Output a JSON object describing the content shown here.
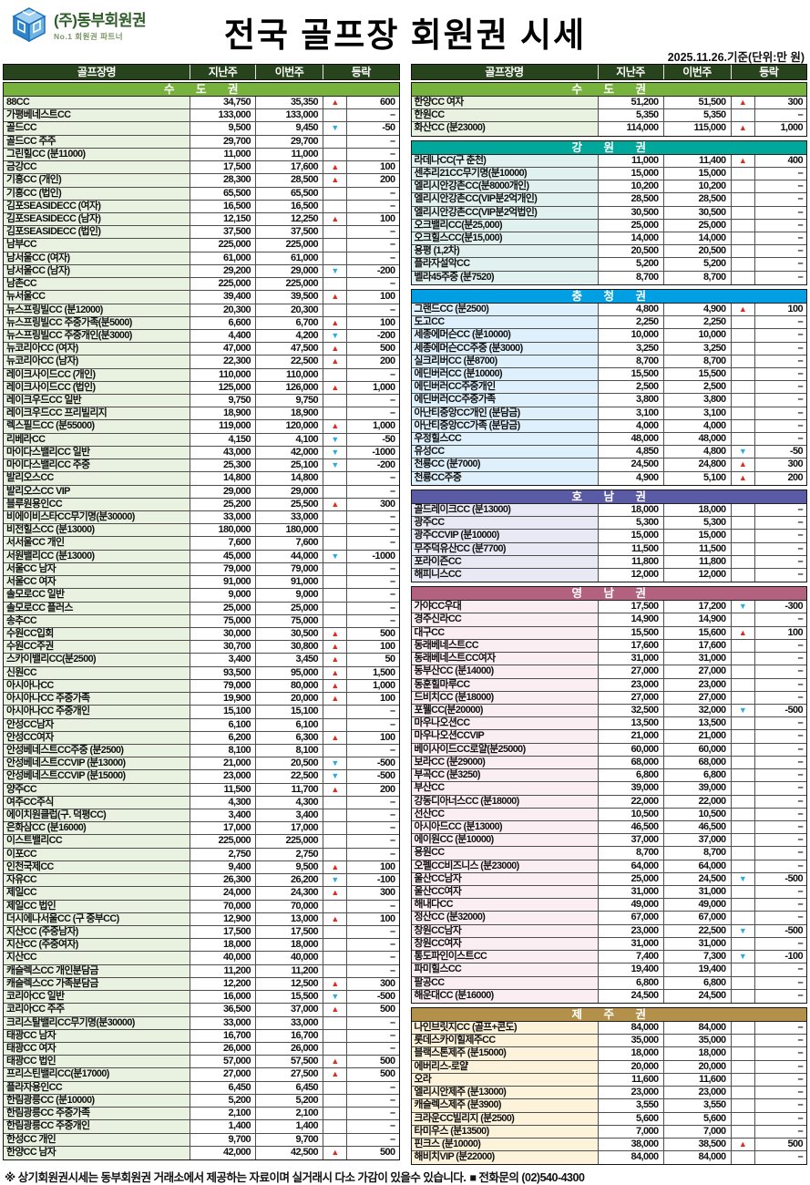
{
  "header": {
    "logo_title": "(주)동부회원권",
    "logo_subtitle": "No.1 회원권 파트너",
    "title": "전국 골프장 회원권 시세",
    "date_note": "2025.11.26.기준(단위:만 원)"
  },
  "columns": [
    "골프장명",
    "지난주",
    "이번주",
    "등락"
  ],
  "markers": {
    "u": "▲",
    "d": "▼"
  },
  "colors": {
    "column_header_bg": "#27441d",
    "up": "#e02a1a",
    "down": "#2aabe2"
  },
  "left_sections": [
    {
      "id": "sudogwon-left",
      "title": "수 도 권",
      "header_bg": "#77b33c",
      "row_bg": "#e9f2e0",
      "rows": [
        [
          "88CC",
          "34,750",
          "35,350",
          "u",
          "600"
        ],
        [
          "가평베네스트CC",
          "133,000",
          "133,000",
          "",
          "–"
        ],
        [
          "골드CC",
          "9,500",
          "9,450",
          "d",
          "-50"
        ],
        [
          "골드CC 주주",
          "29,700",
          "29,700",
          "",
          "–"
        ],
        [
          "그린힐CC (분11000)",
          "11,000",
          "11,000",
          "",
          "–"
        ],
        [
          "금강CC",
          "17,500",
          "17,600",
          "u",
          "100"
        ],
        [
          "기흥CC (개인)",
          "28,300",
          "28,500",
          "u",
          "200"
        ],
        [
          "기흥CC (법인)",
          "65,500",
          "65,500",
          "",
          "–"
        ],
        [
          "김포SEASIDECC (여자)",
          "16,500",
          "16,500",
          "",
          "–"
        ],
        [
          "김포SEASIDECC (남자)",
          "12,150",
          "12,250",
          "u",
          "100"
        ],
        [
          "김포SEASIDECC (법인)",
          "37,500",
          "37,500",
          "",
          "–"
        ],
        [
          "남부CC",
          "225,000",
          "225,000",
          "",
          "–"
        ],
        [
          "남서울CC (여자)",
          "61,000",
          "61,000",
          "",
          "–"
        ],
        [
          "남서울CC (남자)",
          "29,200",
          "29,000",
          "d",
          "-200"
        ],
        [
          "남촌CC",
          "225,000",
          "225,000",
          "",
          "–"
        ],
        [
          "뉴서울CC",
          "39,400",
          "39,500",
          "u",
          "100"
        ],
        [
          "뉴스프링빌CC (분12000)",
          "20,300",
          "20,300",
          "",
          "–"
        ],
        [
          "뉴스프링빌CC 주중가족(분5000)",
          "6,600",
          "6,700",
          "u",
          "100"
        ],
        [
          "뉴스프링빌CC 주중개인(분3000)",
          "4,400",
          "4,200",
          "d",
          "-200"
        ],
        [
          "뉴코리아CC (여자)",
          "47,000",
          "47,500",
          "u",
          "500"
        ],
        [
          "뉴코리아CC (남자)",
          "22,300",
          "22,500",
          "u",
          "200"
        ],
        [
          "레이크사이드CC (개인)",
          "110,000",
          "110,000",
          "",
          "–"
        ],
        [
          "레이크사이드CC (법인)",
          "125,000",
          "126,000",
          "u",
          "1,000"
        ],
        [
          "레이크우드CC 일반",
          "9,750",
          "9,750",
          "",
          "–"
        ],
        [
          "레이크우드CC 프리빌리지",
          "18,900",
          "18,900",
          "",
          "–"
        ],
        [
          "렉스필드CC (분55000)",
          "119,000",
          "120,000",
          "u",
          "1,000"
        ],
        [
          "리베라CC",
          "4,150",
          "4,100",
          "d",
          "-50"
        ],
        [
          "마이다스밸리CC 일반",
          "43,000",
          "42,000",
          "d",
          "-1000"
        ],
        [
          "마이다스밸리CC 주중",
          "25,300",
          "25,100",
          "d",
          "-200"
        ],
        [
          "발리오스CC",
          "14,800",
          "14,800",
          "",
          "–"
        ],
        [
          "발리오스CC VIP",
          "29,000",
          "29,000",
          "",
          "–"
        ],
        [
          "블루원용인CC",
          "25,200",
          "25,500",
          "u",
          "300"
        ],
        [
          "비에이비스타CC무기명(분30000)",
          "33,000",
          "33,000",
          "",
          "–"
        ],
        [
          "비전힐스CC (분13000)",
          "180,000",
          "180,000",
          "",
          "–"
        ],
        [
          "서서울CC 개인",
          "7,600",
          "7,600",
          "",
          "–"
        ],
        [
          "서원밸리CC (분13000)",
          "45,000",
          "44,000",
          "d",
          "-1000"
        ],
        [
          "서울CC 남자",
          "79,000",
          "79,000",
          "",
          "–"
        ],
        [
          "서울CC 여자",
          "91,000",
          "91,000",
          "",
          "–"
        ],
        [
          "솔모로CC 일반",
          "9,000",
          "9,000",
          "",
          "–"
        ],
        [
          "솔모로CC 플러스",
          "25,000",
          "25,000",
          "",
          "–"
        ],
        [
          "송추CC",
          "75,000",
          "75,000",
          "",
          "–"
        ],
        [
          "수원CC입회",
          "30,000",
          "30,500",
          "u",
          "500"
        ],
        [
          "수원CC주권",
          "30,700",
          "30,800",
          "u",
          "100"
        ],
        [
          "스카이밸리CC(분2500)",
          "3,400",
          "3,450",
          "u",
          "50"
        ],
        [
          "신원CC",
          "93,500",
          "95,000",
          "u",
          "1,500"
        ],
        [
          "아시아나CC",
          "79,000",
          "80,000",
          "u",
          "1,000"
        ],
        [
          "아시아나CC 주중가족",
          "19,900",
          "20,000",
          "u",
          "100"
        ],
        [
          "아시아나CC 주중개인",
          "15,100",
          "15,100",
          "",
          "–"
        ],
        [
          "안성CC남자",
          "6,100",
          "6,100",
          "",
          "–"
        ],
        [
          "안성CC여자",
          "6,200",
          "6,300",
          "u",
          "100"
        ],
        [
          "안성베네스트CC주중 (분2500)",
          "8,100",
          "8,100",
          "",
          "–"
        ],
        [
          "안성베네스트CCVIP (분13000)",
          "21,000",
          "20,500",
          "d",
          "-500"
        ],
        [
          "안성베네스트CCVIP (분15000)",
          "23,000",
          "22,500",
          "d",
          "-500"
        ],
        [
          "양주CC",
          "11,500",
          "11,700",
          "u",
          "200"
        ],
        [
          "여주CC주식",
          "4,300",
          "4,300",
          "",
          "–"
        ],
        [
          "에이치원클럽(구. 덕평CC)",
          "3,400",
          "3,400",
          "",
          "–"
        ],
        [
          "은화삼CC (분16000)",
          "17,000",
          "17,000",
          "",
          "–"
        ],
        [
          "이스트밸리CC",
          "225,000",
          "225,000",
          "",
          "–"
        ],
        [
          "이포CC",
          "2,750",
          "2,750",
          "",
          "–"
        ],
        [
          "인천국제CC",
          "9,400",
          "9,500",
          "u",
          "100"
        ],
        [
          "자유CC",
          "26,300",
          "26,200",
          "d",
          "-100"
        ],
        [
          "제일CC",
          "24,000",
          "24,300",
          "u",
          "300"
        ],
        [
          "제일CC 법인",
          "70,000",
          "70,000",
          "",
          "–"
        ],
        [
          "더시에나서울CC (구 중부CC)",
          "12,900",
          "13,000",
          "u",
          "100"
        ],
        [
          "지산CC (주중남자)",
          "17,500",
          "17,500",
          "",
          "–"
        ],
        [
          "지산CC (주중여자)",
          "18,000",
          "18,000",
          "",
          "–"
        ],
        [
          "지산CC",
          "40,000",
          "40,000",
          "",
          "–"
        ],
        [
          "캐슬렉스CC 개인분담금",
          "11,200",
          "11,200",
          "",
          "–"
        ],
        [
          "캐슬렉스CC 가족분담금",
          "12,200",
          "12,500",
          "u",
          "300"
        ],
        [
          "코리아CC 일반",
          "16,000",
          "15,500",
          "d",
          "-500"
        ],
        [
          "코리아CC 주주",
          "36,500",
          "37,000",
          "u",
          "500"
        ],
        [
          "크리스탈밸리CC무기명(분30000)",
          "33,000",
          "33,000",
          "",
          "–"
        ],
        [
          "태광CC 남자",
          "16,700",
          "16,700",
          "",
          "–"
        ],
        [
          "태광CC 여자",
          "26,000",
          "26,000",
          "",
          "–"
        ],
        [
          "태광CC 법인",
          "57,000",
          "57,500",
          "u",
          "500"
        ],
        [
          "프리스틴밸리CC(분17000)",
          "27,000",
          "27,500",
          "u",
          "500"
        ],
        [
          "플라자용인CC",
          "6,450",
          "6,450",
          "",
          "–"
        ],
        [
          "한림광릉CC (분10000)",
          "5,200",
          "5,200",
          "",
          "–"
        ],
        [
          "한림광릉CC 주중가족",
          "2,100",
          "2,100",
          "",
          "–"
        ],
        [
          "한림광릉CC 주중개인",
          "1,400",
          "1,400",
          "",
          "–"
        ],
        [
          "한성CC 개인",
          "9,700",
          "9,700",
          "",
          "–"
        ],
        [
          "한양CC 남자",
          "42,000",
          "42,500",
          "u",
          "500"
        ]
      ]
    }
  ],
  "right_sections": [
    {
      "id": "sudogwon-right",
      "title": "수 도 권",
      "header_bg": "#77b33c",
      "row_bg": "#e9f2e0",
      "rows": [
        [
          "한양CC 여자",
          "51,200",
          "51,500",
          "u",
          "300"
        ],
        [
          "한원CC",
          "5,350",
          "5,350",
          "",
          "–"
        ],
        [
          "화산CC (분23000)",
          "114,000",
          "115,000",
          "u",
          "1,000"
        ]
      ]
    },
    {
      "id": "gangwon",
      "title": "강 원 권",
      "header_bg": "#00a79b",
      "row_bg": "#e0f1ef",
      "rows": [
        [
          "라데나CC(구 춘천)",
          "11,000",
          "11,400",
          "u",
          "400"
        ],
        [
          "센추리21CC무기명(분10000)",
          "15,000",
          "15,000",
          "",
          "–"
        ],
        [
          "엘리시안강촌CC(분8000개인)",
          "10,200",
          "10,200",
          "",
          "–"
        ],
        [
          "엘리시안강촌CC(VIP분2억개인)",
          "28,500",
          "28,500",
          "",
          "–"
        ],
        [
          "엘리시안강촌CC(VIP분2억법인)",
          "30,500",
          "30,500",
          "",
          "–"
        ],
        [
          "오크밸리CC(분25,000)",
          "25,000",
          "25,000",
          "",
          "–"
        ],
        [
          "오크힐스CC(분15,000)",
          "14,000",
          "14,000",
          "",
          "–"
        ],
        [
          "용평 (1,2차)",
          "20,500",
          "20,500",
          "",
          "–"
        ],
        [
          "플라자설악CC",
          "5,200",
          "5,200",
          "",
          "–"
        ],
        [
          "벨라45주중 (분7520)",
          "8,700",
          "8,700",
          "",
          "–"
        ]
      ]
    },
    {
      "id": "chungcheong",
      "title": "충 청 권",
      "header_bg": "#009ee2",
      "row_bg": "#def0fb",
      "rows": [
        [
          "그랜드CC (분2500)",
          "4,800",
          "4,900",
          "u",
          "100"
        ],
        [
          "도고CC",
          "2,250",
          "2,250",
          "",
          "–"
        ],
        [
          "세종에머슨CC (분10000)",
          "10,000",
          "10,000",
          "",
          "–"
        ],
        [
          "세종에머슨CC주중 (분3000)",
          "3,250",
          "3,250",
          "",
          "–"
        ],
        [
          "실크리버CC (분8700)",
          "8,700",
          "8,700",
          "",
          "–"
        ],
        [
          "에딘버러CC (분10000)",
          "15,500",
          "15,500",
          "",
          "–"
        ],
        [
          "에딘버러CC주중개인",
          "2,500",
          "2,500",
          "",
          "–"
        ],
        [
          "에딘버러CC주중가족",
          "3,800",
          "3,800",
          "",
          "–"
        ],
        [
          "아난티중앙CC개인 (분담금)",
          "3,100",
          "3,100",
          "",
          "–"
        ],
        [
          "아난티중앙CC가족 (분담금)",
          "4,000",
          "4,000",
          "",
          "–"
        ],
        [
          "우정힐스CC",
          "48,000",
          "48,000",
          "",
          "–"
        ],
        [
          "유성CC",
          "4,850",
          "4,800",
          "d",
          "-50"
        ],
        [
          "천룡CC (분7000)",
          "24,500",
          "24,800",
          "u",
          "300"
        ],
        [
          "천룡CC주중",
          "4,900",
          "5,100",
          "u",
          "200"
        ]
      ]
    },
    {
      "id": "honam",
      "title": "호 남 권",
      "header_bg": "#5a5aa5",
      "row_bg": "#e9e9f5",
      "rows": [
        [
          "골드레이크CC (분13000)",
          "18,000",
          "18,000",
          "",
          "–"
        ],
        [
          "광주CC",
          "5,300",
          "5,300",
          "",
          "–"
        ],
        [
          "광주CCVIP (분10000)",
          "15,000",
          "15,000",
          "",
          "–"
        ],
        [
          "무주덕유산CC (분7700)",
          "11,500",
          "11,500",
          "",
          "–"
        ],
        [
          "포라이즌CC",
          "11,800",
          "11,800",
          "",
          "–"
        ],
        [
          "해피니스CC",
          "12,000",
          "12,000",
          "",
          "–"
        ]
      ]
    },
    {
      "id": "yeongnam",
      "title": "영 남 권",
      "header_bg": "#b2617f",
      "row_bg": "#fbeef3",
      "rows": [
        [
          "가야CC우대",
          "17,500",
          "17,200",
          "d",
          "-300"
        ],
        [
          "경주신라CC",
          "14,900",
          "14,900",
          "",
          "–"
        ],
        [
          "대구CC",
          "15,500",
          "15,600",
          "u",
          "100"
        ],
        [
          "동래베네스트CC",
          "17,600",
          "17,600",
          "",
          "–"
        ],
        [
          "동래베네스트CC여자",
          "31,000",
          "31,000",
          "",
          "–"
        ],
        [
          "동부산CC (분14000)",
          "27,000",
          "27,000",
          "",
          "–"
        ],
        [
          "동훈힐마루CC",
          "23,000",
          "23,000",
          "",
          "–"
        ],
        [
          "드비치CC (분18000)",
          "27,000",
          "27,000",
          "",
          "–"
        ],
        [
          "포웰CC(분20000)",
          "32,500",
          "32,000",
          "d",
          "-500"
        ],
        [
          "마우나오션CC",
          "13,500",
          "13,500",
          "",
          "–"
        ],
        [
          "마우나오션CCVIP",
          "21,000",
          "21,000",
          "",
          "–"
        ],
        [
          "베이사이드CC로얄(분25000)",
          "60,000",
          "60,000",
          "",
          "–"
        ],
        [
          "보라CC (분29000)",
          "68,000",
          "68,000",
          "",
          "–"
        ],
        [
          "부곡CC (분3250)",
          "6,800",
          "6,800",
          "",
          "–"
        ],
        [
          "부산CC",
          "39,000",
          "39,000",
          "",
          "–"
        ],
        [
          "강동디아너스CC (분18000)",
          "22,000",
          "22,000",
          "",
          "–"
        ],
        [
          "선산CC",
          "10,500",
          "10,500",
          "",
          "–"
        ],
        [
          "아시아드CC (분13000)",
          "46,500",
          "46,500",
          "",
          "–"
        ],
        [
          "에이원CC (분10000)",
          "37,000",
          "37,000",
          "",
          "–"
        ],
        [
          "용원CC",
          "8,700",
          "8,700",
          "",
          "–"
        ],
        [
          "오펠CC비즈니스 (분23000)",
          "64,000",
          "64,000",
          "",
          "–"
        ],
        [
          "울산CC남자",
          "25,000",
          "24,500",
          "d",
          "-500"
        ],
        [
          "울산CC여자",
          "31,000",
          "31,000",
          "",
          "–"
        ],
        [
          "해내다CC",
          "49,000",
          "49,000",
          "",
          "–"
        ],
        [
          "정산CC (분32000)",
          "67,000",
          "67,000",
          "",
          "–"
        ],
        [
          "창원CC남자",
          "23,000",
          "22,500",
          "d",
          "-500"
        ],
        [
          "창원CC여자",
          "31,000",
          "31,000",
          "",
          "–"
        ],
        [
          "통도파인이스트CC",
          "7,400",
          "7,300",
          "d",
          "-100"
        ],
        [
          "파미힐스CC",
          "19,400",
          "19,400",
          "",
          "–"
        ],
        [
          "팔공CC",
          "6,800",
          "6,800",
          "",
          "–"
        ],
        [
          "해운대CC (분16000)",
          "24,500",
          "24,500",
          "",
          "–"
        ]
      ]
    },
    {
      "id": "jeju",
      "title": "제 주 권",
      "header_bg": "#b3914a",
      "row_bg": "#fdf2da",
      "rows": [
        [
          "나인브릿지CC (골프+콘도)",
          "84,000",
          "84,000",
          "",
          "–"
        ],
        [
          "롯데스카이힐제주CC",
          "35,000",
          "35,000",
          "",
          "–"
        ],
        [
          "블랙스톤제주 (분15000)",
          "18,000",
          "18,000",
          "",
          "–"
        ],
        [
          "에버리스-로얄",
          "20,000",
          "20,000",
          "",
          "–"
        ],
        [
          "오라",
          "11,600",
          "11,600",
          "",
          "–"
        ],
        [
          "엘리시안제주 (분13000)",
          "23,000",
          "23,000",
          "",
          "–"
        ],
        [
          "캐슬렉스제주 (분3900)",
          "3,550",
          "3,550",
          "",
          "–"
        ],
        [
          "크라운CC빌리지 (분2500)",
          "5,600",
          "5,600",
          "",
          "–"
        ],
        [
          "타미우스 (분13500)",
          "7,000",
          "7,000",
          "",
          "–"
        ],
        [
          "핀크스 (분10000)",
          "38,000",
          "38,500",
          "u",
          "500"
        ],
        [
          "해비치VIP (분22000)",
          "84,000",
          "84,000",
          "",
          "–"
        ]
      ]
    }
  ],
  "footer": {
    "note": "※ 상기회원권시세는 동부회원권 거래소에서 제공하는 자료이며 실거래시 다소 가감이 있을수 있습니다.",
    "contact": "■ 전화문의 (02)540-4300"
  }
}
